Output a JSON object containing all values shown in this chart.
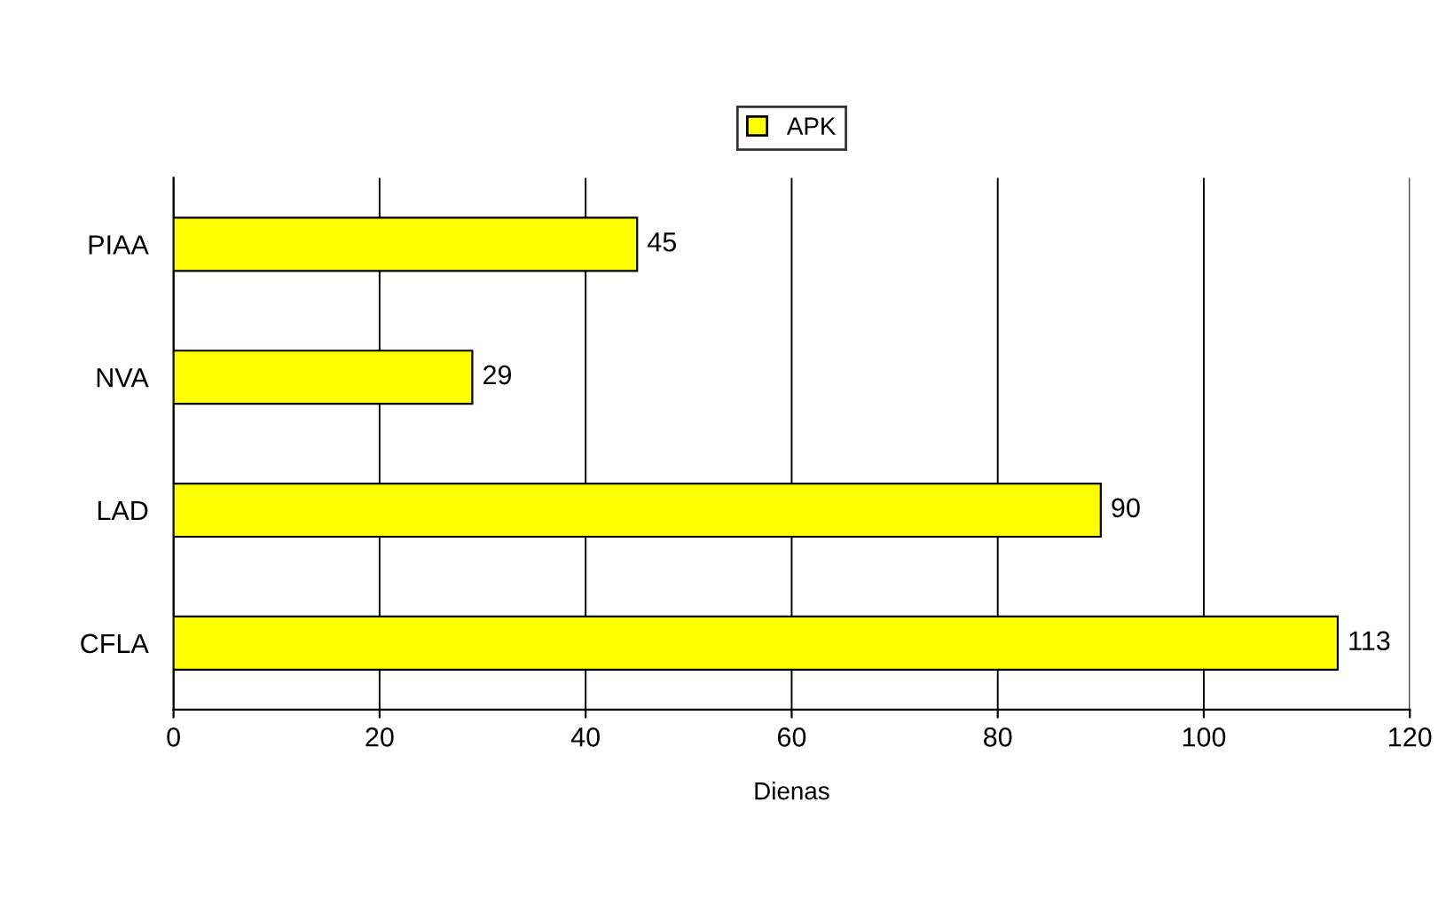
{
  "chart_data": {
    "type": "bar",
    "orientation": "horizontal",
    "categories": [
      "PIAA",
      "NVA",
      "LAD",
      "CFLA"
    ],
    "series": [
      {
        "name": "APK",
        "color": "#ffff00",
        "values": [
          45,
          29,
          90,
          113
        ]
      }
    ],
    "xlabel": "Dienas",
    "xlim": [
      0,
      120
    ],
    "xticks": [
      0,
      20,
      40,
      60,
      80,
      100,
      120
    ],
    "grid": "x",
    "legend": "top",
    "data_labels": true
  }
}
